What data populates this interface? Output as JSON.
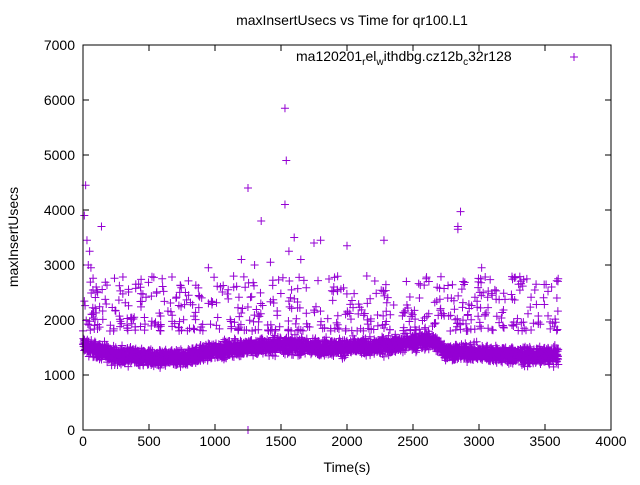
{
  "chart_data": {
    "type": "scatter",
    "title": "maxInsertUsecs vs Time for qr100.L1",
    "xlabel": "Time(s)",
    "ylabel": "maxInsertUsecs",
    "xlim": [
      0,
      4000
    ],
    "ylim": [
      0,
      7000
    ],
    "xticks": [
      0,
      500,
      1000,
      1500,
      2000,
      2500,
      3000,
      3500,
      4000
    ],
    "yticks": [
      0,
      1000,
      2000,
      3000,
      4000,
      5000,
      6000,
      7000
    ],
    "grid": false,
    "legend_position": "top-right",
    "series": [
      {
        "name_parts": [
          "ma120201",
          "r",
          "el",
          "w",
          "ithdbg.cz12b",
          "c",
          "32r128"
        ],
        "name": "ma120201_rel_withdbg.cz12b_c32r128",
        "color": "#9400d3",
        "marker": "plus",
        "dense_band": {
          "x": [
            0,
            100,
            250,
            500,
            750,
            900,
            1000,
            1250,
            1500,
            1750,
            2000,
            2250,
            2500,
            2650,
            2750,
            3000,
            3250,
            3500,
            3600
          ],
          "center": [
            1550,
            1450,
            1350,
            1320,
            1280,
            1400,
            1450,
            1500,
            1550,
            1500,
            1500,
            1520,
            1600,
            1620,
            1420,
            1400,
            1350,
            1350,
            1360
          ],
          "spread": 220
        },
        "sparse_range": {
          "y": [
            1800,
            2800
          ],
          "x": [
            0,
            3600
          ]
        },
        "outliers": [
          [
            10,
            3900
          ],
          [
            20,
            4450
          ],
          [
            30,
            3450
          ],
          [
            40,
            3000
          ],
          [
            50,
            3250
          ],
          [
            60,
            2950
          ],
          [
            140,
            3700
          ],
          [
            100,
            2600
          ],
          [
            400,
            2650
          ],
          [
            600,
            2750
          ],
          [
            800,
            2450
          ],
          [
            950,
            2950
          ],
          [
            1100,
            2550
          ],
          [
            1200,
            3100
          ],
          [
            1250,
            4400
          ],
          [
            1250,
            0
          ],
          [
            1300,
            3000
          ],
          [
            1350,
            3800
          ],
          [
            1420,
            3050
          ],
          [
            1530,
            5850
          ],
          [
            1540,
            4900
          ],
          [
            1530,
            4100
          ],
          [
            1560,
            3250
          ],
          [
            1600,
            3500
          ],
          [
            1650,
            3100
          ],
          [
            1750,
            3400
          ],
          [
            1800,
            3450
          ],
          [
            1900,
            2600
          ],
          [
            2000,
            3350
          ],
          [
            2150,
            2800
          ],
          [
            2280,
            3450
          ],
          [
            2450,
            2700
          ],
          [
            2600,
            2750
          ],
          [
            2840,
            3700
          ],
          [
            2840,
            3650
          ],
          [
            2860,
            3970
          ],
          [
            2880,
            2700
          ],
          [
            3020,
            2950
          ],
          [
            3100,
            2450
          ],
          [
            3300,
            2650
          ],
          [
            3550,
            2600
          ],
          [
            3600,
            2750
          ],
          [
            3590,
            2400
          ]
        ]
      }
    ]
  }
}
